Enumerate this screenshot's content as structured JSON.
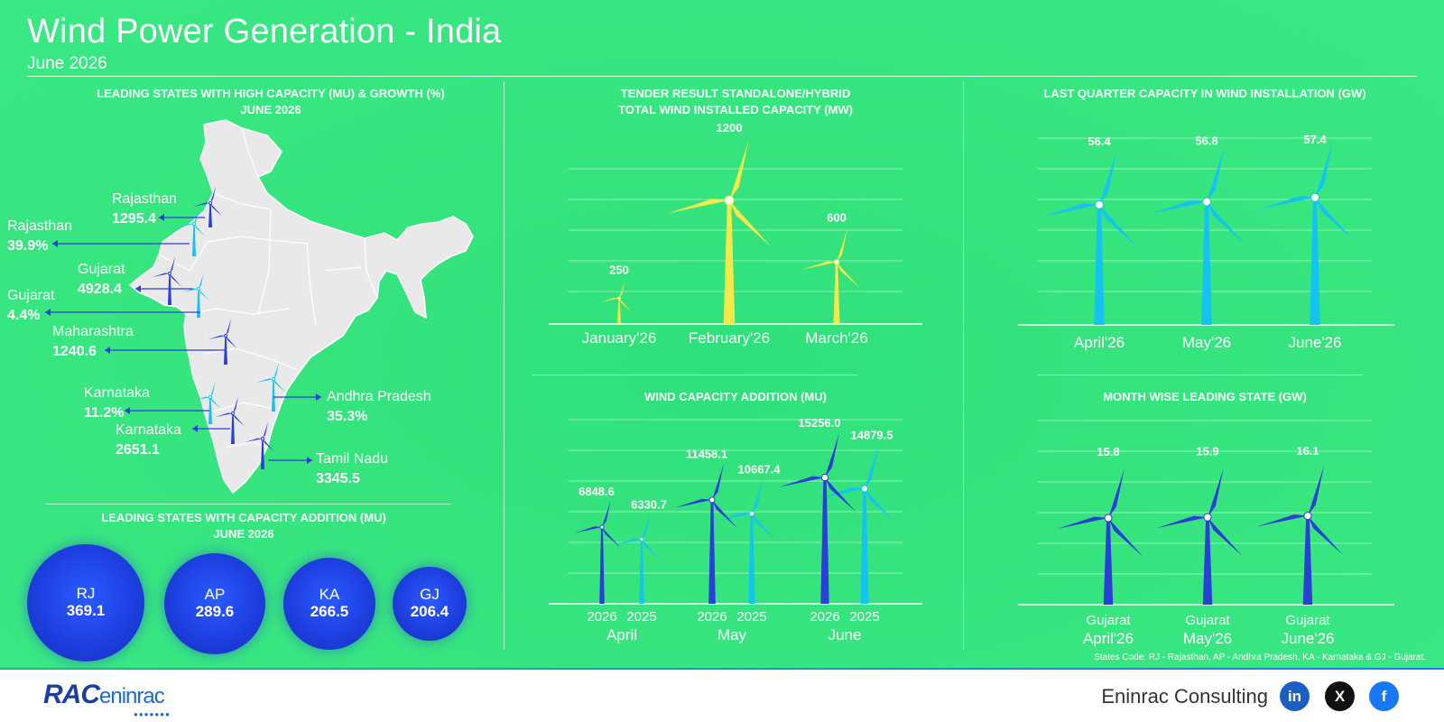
{
  "header": {
    "title": "Wind Power Generation - India",
    "subtitle": "June 2026"
  },
  "colors": {
    "yellow": "#f5e84a",
    "dark_blue": "#2a3fd6",
    "light_blue": "#15c3f2",
    "map": "#e9e9e9",
    "background": "#36e47e"
  },
  "map_section": {
    "title_line1": "LEADING STATES WITH HIGH CAPACITY (MU) & GROWTH (%)",
    "title_line2": "JUNE 2026",
    "capacity": [
      {
        "state": "Rajasthan",
        "value": "1295.4"
      },
      {
        "state": "Gujarat",
        "value": "4928.4"
      },
      {
        "state": "Maharashtra",
        "value": "1240.6"
      },
      {
        "state": "Karnataka",
        "value": "2651.1"
      },
      {
        "state": "Tamil Nadu",
        "value": "3345.5"
      }
    ],
    "growth": [
      {
        "state": "Rajasthan",
        "value": "39.9%"
      },
      {
        "state": "Gujarat",
        "value": "4.4%"
      },
      {
        "state": "Karnataka",
        "value": "11.2%"
      },
      {
        "state": "Andhra Pradesh",
        "value": "35.3%"
      }
    ]
  },
  "bubbles_section": {
    "title_line1": "LEADING STATES WITH CAPACITY ADDITION (MU)",
    "title_line2": "JUNE 2026",
    "items": [
      {
        "code": "RJ",
        "value": "369.1"
      },
      {
        "code": "AP",
        "value": "289.6"
      },
      {
        "code": "KA",
        "value": "266.5"
      },
      {
        "code": "GJ",
        "value": "206.4"
      }
    ]
  },
  "chart_data": [
    {
      "type": "bar",
      "title": "TENDER RESULT STANDALONE/HYBRID TOTAL WIND INSTALLED CAPACITY (MW)",
      "title_line1": "TENDER RESULT STANDALONE/HYBRID",
      "title_line2": "TOTAL WIND INSTALLED CAPACITY (MW)",
      "categories": [
        "January'26",
        "February'26",
        "March'26"
      ],
      "values": [
        250,
        1200,
        600
      ],
      "labels": [
        "250",
        "1200",
        "600"
      ],
      "grid": true
    },
    {
      "type": "bar",
      "title": "WIND CAPACITY ADDITION (MU)",
      "categories": [
        "April",
        "May",
        "June"
      ],
      "series": [
        {
          "name": "2026",
          "values": [
            6848.6,
            11458.1,
            15256.0
          ],
          "labels": [
            "6848.6",
            "11458.1",
            "15256.0"
          ]
        },
        {
          "name": "2025",
          "values": [
            6330.7,
            10667.4,
            14879.5
          ],
          "labels": [
            "6330.7",
            "10667.4",
            "14879.5"
          ]
        }
      ],
      "grid": true
    },
    {
      "type": "bar",
      "title": "LAST QUARTER CAPACITY IN WIND INSTALLATION (GW)",
      "categories": [
        "April'26",
        "May'26",
        "June'26"
      ],
      "values": [
        56.4,
        56.8,
        57.4
      ],
      "labels": [
        "56.4",
        "56.8",
        "57.4"
      ],
      "grid": true
    },
    {
      "type": "bar",
      "title": "MONTH WISE LEADING STATE (GW)",
      "categories": [
        "April'26",
        "May'26",
        "June'26"
      ],
      "states": [
        "Gujarat",
        "Gujarat",
        "Gujarat"
      ],
      "values": [
        15.8,
        15.9,
        16.1
      ],
      "labels": [
        "15.8",
        "15.9",
        "16.1"
      ],
      "grid": true
    }
  ],
  "footer": {
    "note": "States Code: RJ - Rajasthan, AP - Andhra Pradesh, KA - Karnataka & GJ - Gujarat.",
    "company": "Eninrac Consulting",
    "logo_main": "RAC",
    "logo_text": "eninrac",
    "social": [
      "in",
      "X",
      "f"
    ]
  }
}
